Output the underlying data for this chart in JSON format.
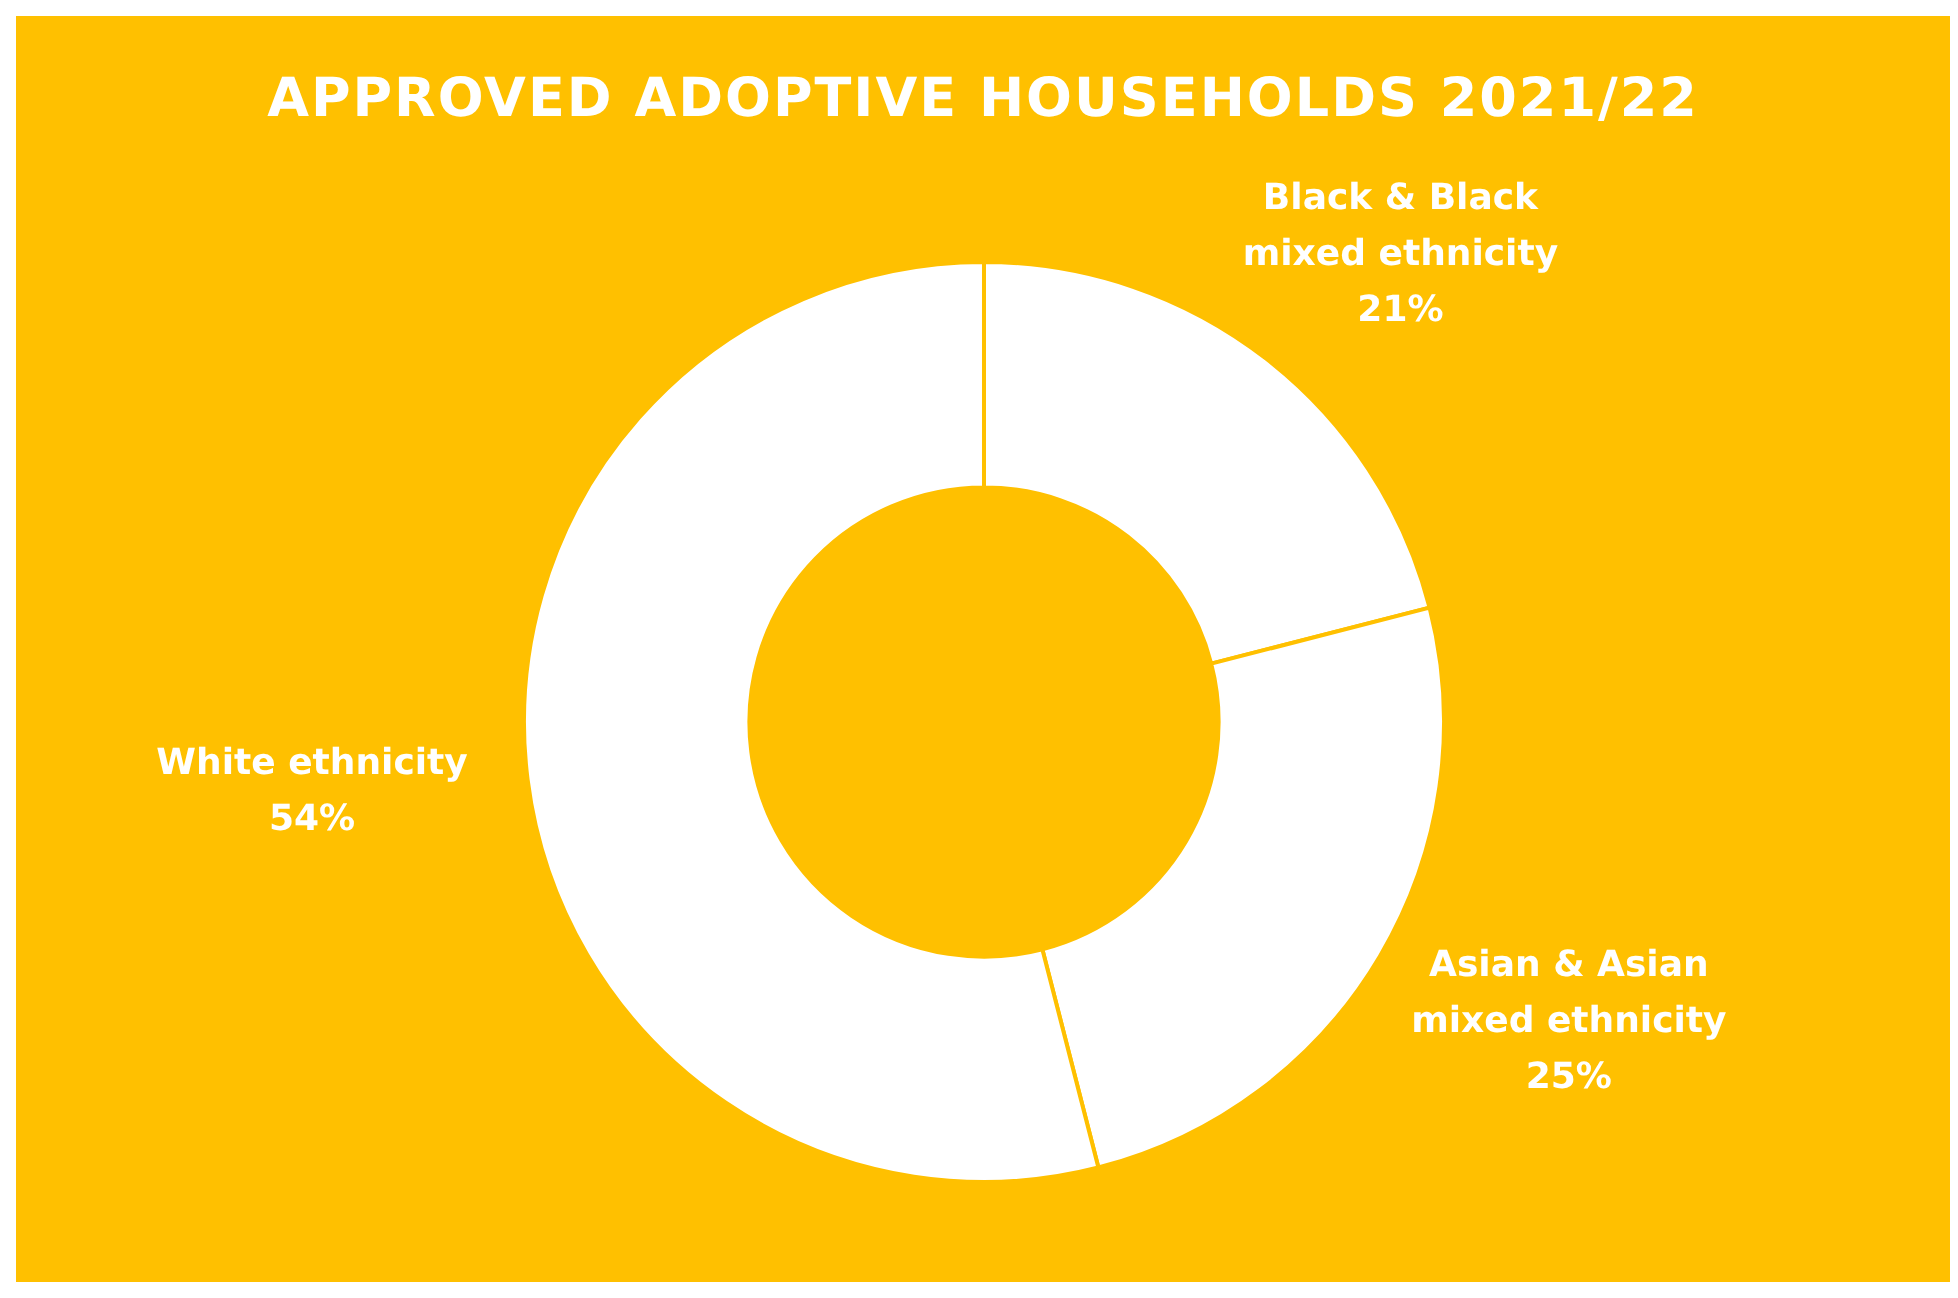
{
  "chart_data": {
    "type": "donut",
    "title": "APPROVED ADOPTIVE HOUSEHOLDS 2021/22",
    "categories": [
      "Black & Black mixed ethnicity",
      "Asian & Asian mixed ethnicity",
      "White ethnicity"
    ],
    "values": [
      21,
      25,
      54
    ],
    "colors": [
      "#ffffff",
      "#ffffff",
      "#ffffff"
    ],
    "value_labels": [
      "21%",
      "25%",
      "54%"
    ],
    "legend": false
  }
}
